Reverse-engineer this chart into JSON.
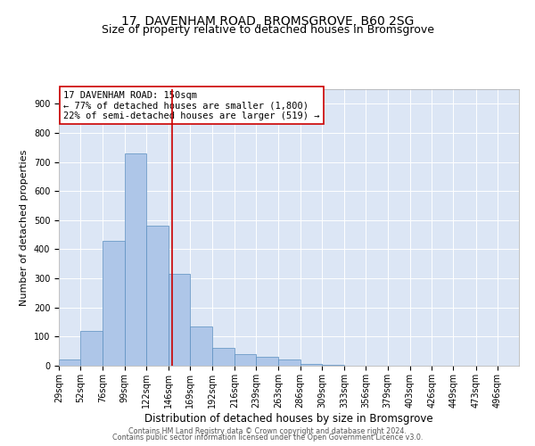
{
  "title1": "17, DAVENHAM ROAD, BROMSGROVE, B60 2SG",
  "title2": "Size of property relative to detached houses in Bromsgrove",
  "xlabel": "Distribution of detached houses by size in Bromsgrove",
  "ylabel": "Number of detached properties",
  "footer1": "Contains HM Land Registry data © Crown copyright and database right 2024.",
  "footer2": "Contains public sector information licensed under the Open Government Licence v3.0.",
  "annotation_line1": "17 DAVENHAM ROAD: 150sqm",
  "annotation_line2": "← 77% of detached houses are smaller (1,800)",
  "annotation_line3": "22% of semi-detached houses are larger (519) →",
  "bin_labels": [
    "29sqm",
    "52sqm",
    "76sqm",
    "99sqm",
    "122sqm",
    "146sqm",
    "169sqm",
    "192sqm",
    "216sqm",
    "239sqm",
    "263sqm",
    "286sqm",
    "309sqm",
    "333sqm",
    "356sqm",
    "379sqm",
    "403sqm",
    "426sqm",
    "449sqm",
    "473sqm",
    "496sqm"
  ],
  "bin_edges": [
    29,
    52,
    76,
    99,
    122,
    146,
    169,
    192,
    216,
    239,
    263,
    286,
    309,
    333,
    356,
    379,
    403,
    426,
    449,
    473,
    496,
    519
  ],
  "bar_heights": [
    20,
    120,
    430,
    730,
    480,
    315,
    135,
    60,
    40,
    30,
    20,
    5,
    3,
    0,
    0,
    0,
    0,
    0,
    0,
    1,
    0
  ],
  "bar_color": "#aec6e8",
  "bar_edge_color": "#5a8fc0",
  "vline_color": "#cc0000",
  "vline_x": 150,
  "plot_bg_color": "#dce6f5",
  "ylim": [
    0,
    950
  ],
  "yticks": [
    0,
    100,
    200,
    300,
    400,
    500,
    600,
    700,
    800,
    900
  ],
  "title_fontsize": 10,
  "subtitle_fontsize": 9,
  "annotation_fontsize": 7.5,
  "ylabel_fontsize": 8,
  "xlabel_fontsize": 8.5,
  "tick_fontsize": 7,
  "footer_fontsize": 5.8
}
